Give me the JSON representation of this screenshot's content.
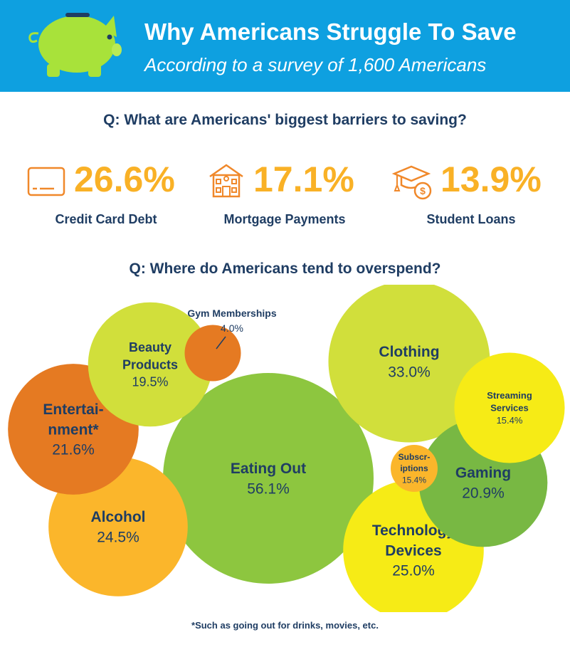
{
  "header": {
    "title": "Why Americans Struggle To Save",
    "subtitle": "According to a survey of 1,600 Americans"
  },
  "barriers": {
    "question": "Q: What are Americans' biggest barriers to saving?",
    "items": [
      {
        "label": "Credit Card Debt",
        "value": "26.6%",
        "icon": "credit-card-icon"
      },
      {
        "label": "Mortgage Payments",
        "value": "17.1%",
        "icon": "house-icon"
      },
      {
        "label": "Student Loans",
        "value": "13.9%",
        "icon": "graduation-cap-icon"
      }
    ]
  },
  "overspend": {
    "question": "Q: Where do Americans tend to overspend?"
  },
  "footnote": "*Such as going out for drinks, movies, etc.",
  "colors": {
    "header_bg": "#0ea0e0",
    "accent_orange": "#f9b126",
    "navy": "#1f3d63",
    "icon_orange": "#f0882a"
  },
  "chart_data": {
    "type": "bubble",
    "title": "Q: Where do Americans tend to overspend?",
    "series": [
      {
        "name": "Eating Out",
        "lines": [
          "Eating Out"
        ],
        "value": 56.1,
        "value_label": "56.1%",
        "color": "#8dc63f"
      },
      {
        "name": "Clothing",
        "lines": [
          "Clothing"
        ],
        "value": 33.0,
        "value_label": "33.0%",
        "color": "#d1df3b"
      },
      {
        "name": "Technology Devices",
        "lines": [
          "Technology",
          "Devices"
        ],
        "value": 25.0,
        "value_label": "25.0%",
        "color": "#f6eb16"
      },
      {
        "name": "Alcohol",
        "lines": [
          "Alcohol"
        ],
        "value": 24.5,
        "value_label": "24.5%",
        "color": "#fbb62b"
      },
      {
        "name": "Entertainment*",
        "lines": [
          "Entertai-",
          "nment*"
        ],
        "value": 21.6,
        "value_label": "21.6%",
        "color": "#e57a22"
      },
      {
        "name": "Gaming",
        "lines": [
          "Gaming"
        ],
        "value": 20.9,
        "value_label": "20.9%",
        "color": "#78b843"
      },
      {
        "name": "Beauty Products",
        "lines": [
          "Beauty",
          "Products"
        ],
        "value": 19.5,
        "value_label": "19.5%",
        "color": "#d1df3b"
      },
      {
        "name": "Streaming Services",
        "lines": [
          "Streaming",
          "Services"
        ],
        "value": 15.4,
        "value_label": "15.4%",
        "color": "#f6eb16"
      },
      {
        "name": "Subscriptions",
        "lines": [
          "Subscr-",
          "iptions"
        ],
        "value": 15.4,
        "value_label": "15.4%",
        "color": "#fbb62b"
      },
      {
        "name": "Gym Memberships",
        "lines": [
          "Gym Memberships"
        ],
        "value": 4.0,
        "value_label": "4.0%",
        "color": "#e57a22"
      }
    ]
  }
}
